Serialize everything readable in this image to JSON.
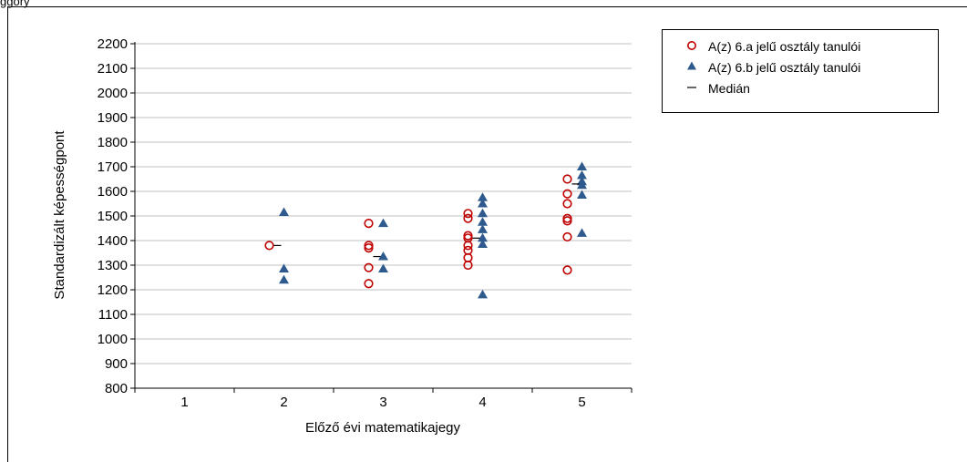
{
  "caption": "ggory",
  "colors": {
    "class_a": "#c00000",
    "class_b": "#2e5a8e",
    "grid": "#c0c0c0",
    "axis": "#000000"
  },
  "chart_data": {
    "type": "scatter",
    "xlabel": "Előző évi matematikajegy",
    "ylabel": "Standardizált képességpont",
    "x_categories": [
      "1",
      "2",
      "3",
      "4",
      "5"
    ],
    "ylim": [
      800,
      2200
    ],
    "y_ticks": [
      800,
      900,
      1000,
      1100,
      1200,
      1300,
      1400,
      1500,
      1600,
      1700,
      1800,
      1900,
      2000,
      2100,
      2200
    ],
    "grid": "horizontal",
    "legend_position": "top-right",
    "series": [
      {
        "name": "A(z) 6.a jelű osztály tanulói",
        "marker": "circle",
        "points": [
          {
            "x": "2",
            "y": 1380
          },
          {
            "x": "3",
            "y": 1470
          },
          {
            "x": "3",
            "y": 1380
          },
          {
            "x": "3",
            "y": 1370
          },
          {
            "x": "3",
            "y": 1290
          },
          {
            "x": "3",
            "y": 1225
          },
          {
            "x": "4",
            "y": 1510
          },
          {
            "x": "4",
            "y": 1490
          },
          {
            "x": "4",
            "y": 1420
          },
          {
            "x": "4",
            "y": 1410
          },
          {
            "x": "4",
            "y": 1380
          },
          {
            "x": "4",
            "y": 1360
          },
          {
            "x": "4",
            "y": 1330
          },
          {
            "x": "4",
            "y": 1300
          },
          {
            "x": "5",
            "y": 1650
          },
          {
            "x": "5",
            "y": 1590
          },
          {
            "x": "5",
            "y": 1550
          },
          {
            "x": "5",
            "y": 1490
          },
          {
            "x": "5",
            "y": 1480
          },
          {
            "x": "5",
            "y": 1415
          },
          {
            "x": "5",
            "y": 1280
          }
        ]
      },
      {
        "name": "A(z) 6.b jelű osztály tanulói",
        "marker": "triangle",
        "points": [
          {
            "x": "2",
            "y": 1515
          },
          {
            "x": "2",
            "y": 1285
          },
          {
            "x": "2",
            "y": 1240
          },
          {
            "x": "3",
            "y": 1470
          },
          {
            "x": "3",
            "y": 1335
          },
          {
            "x": "3",
            "y": 1285
          },
          {
            "x": "4",
            "y": 1575
          },
          {
            "x": "4",
            "y": 1550
          },
          {
            "x": "4",
            "y": 1510
          },
          {
            "x": "4",
            "y": 1475
          },
          {
            "x": "4",
            "y": 1445
          },
          {
            "x": "4",
            "y": 1410
          },
          {
            "x": "4",
            "y": 1385
          },
          {
            "x": "4",
            "y": 1180
          },
          {
            "x": "5",
            "y": 1700
          },
          {
            "x": "5",
            "y": 1665
          },
          {
            "x": "5",
            "y": 1640
          },
          {
            "x": "5",
            "y": 1625
          },
          {
            "x": "5",
            "y": 1585
          },
          {
            "x": "5",
            "y": 1430
          }
        ]
      },
      {
        "name": "Medián",
        "marker": "dash",
        "points": [
          {
            "x": "2",
            "y": 1380
          },
          {
            "x": "3",
            "y": 1335
          },
          {
            "x": "4",
            "y": 1410
          },
          {
            "x": "5",
            "y": 1630
          }
        ]
      }
    ]
  }
}
